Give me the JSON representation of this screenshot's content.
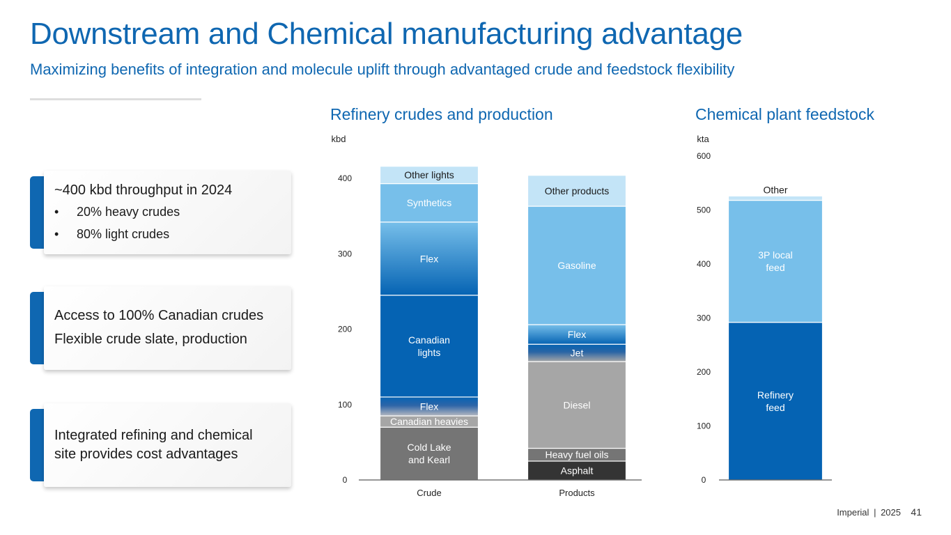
{
  "title": "Downstream and Chemical manufacturing advantage",
  "subtitle": "Maximizing benefits of integration and molecule uplift through advantaged crude and feedstock flexibility",
  "cards": [
    {
      "heading": "~400 kbd throughput in 2024",
      "bullets": [
        "20% heavy crudes",
        "80% light crudes"
      ],
      "bullet_char": "•"
    },
    {
      "line1": "Access to 100% Canadian crudes",
      "line2": "Flexible crude slate, production"
    },
    {
      "line1": "Integrated refining and chemical",
      "line2": "site provides cost advantages"
    }
  ],
  "footer": {
    "company": "Imperial",
    "separator": "|",
    "year": "2025",
    "page": "41"
  },
  "colors": {
    "brand": "#0F67B1",
    "dark_blue": "#0563B3",
    "mid_blue": "#77BFEA",
    "light_blue": "#C3E4F7",
    "dark_gray": "#343434",
    "mid_gray": "#757575",
    "light_gray": "#A6A6A6",
    "axis": "#595959"
  },
  "chart_data": [
    {
      "type": "bar",
      "stacked": true,
      "title": "Refinery crudes and production",
      "ylabel": "kbd",
      "ylim": [
        0,
        400
      ],
      "yticks": [
        0,
        100,
        200,
        300,
        400
      ],
      "categories": [
        "Crude",
        "Products"
      ],
      "stacks": [
        {
          "category": "Crude",
          "segments": [
            {
              "label": "Cold Lake\nand Kearl",
              "value": 70,
              "fill": "#757575"
            },
            {
              "label": "Canadian heavies",
              "value": 15,
              "fill": "#A6A6A6"
            },
            {
              "label": "Flex",
              "value": 25,
              "fill": "grad-gray-blue"
            },
            {
              "label": "Canadian\nlights",
              "value": 135,
              "fill": "#0563B3"
            },
            {
              "label": "Flex",
              "value": 97,
              "fill": "grad-blue-down"
            },
            {
              "label": "Synthetics",
              "value": 51,
              "fill": "#77BFEA"
            },
            {
              "label": "Other lights",
              "value": 23,
              "fill": "#C3E4F7"
            }
          ]
        },
        {
          "category": "Products",
          "segments": [
            {
              "label": "Asphalt",
              "value": 25,
              "fill": "#343434"
            },
            {
              "label": "Heavy fuel oils",
              "value": 17,
              "fill": "#757575"
            },
            {
              "label": "Diesel",
              "value": 115,
              "fill": "#A6A6A6"
            },
            {
              "label": "Jet",
              "value": 23,
              "fill": "grad-blue-gray"
            },
            {
              "label": "Flex",
              "value": 26,
              "fill": "grad-blue-up"
            },
            {
              "label": "Gasoline",
              "value": 157,
              "fill": "#77BFEA"
            },
            {
              "label": "Other products",
              "value": 41,
              "fill": "#C3E4F7"
            }
          ]
        }
      ]
    },
    {
      "type": "bar",
      "stacked": true,
      "title": "Chemical plant feedstock",
      "ylabel": "kta",
      "ylim": [
        0,
        600
      ],
      "yticks": [
        0,
        100,
        200,
        300,
        400,
        500,
        600
      ],
      "categories": [
        ""
      ],
      "stacks": [
        {
          "category": "",
          "segments": [
            {
              "label": "Refinery\nfeed",
              "value": 292,
              "fill": "#0563B3"
            },
            {
              "label": "3P local\nfeed",
              "value": 226,
              "fill": "#77BFEA"
            },
            {
              "label": "Other",
              "value": 8,
              "fill": "#C3E4F7"
            }
          ]
        }
      ]
    }
  ]
}
